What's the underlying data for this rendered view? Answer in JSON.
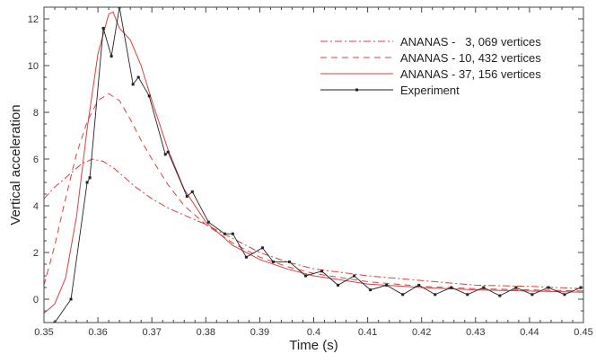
{
  "chart_data": {
    "type": "line",
    "xlabel": "Time (s)",
    "ylabel": "Vertical acceleration",
    "xlim": [
      0.35,
      0.45
    ],
    "ylim": [
      -1,
      12.5
    ],
    "xticks": [
      "0.35",
      "0.36",
      "0.37",
      "0.38",
      "0.39",
      "0.4",
      "0.41",
      "0.42",
      "0.43",
      "0.44",
      "0.45"
    ],
    "yticks": [
      "0",
      "2",
      "4",
      "6",
      "8",
      "10",
      "12"
    ],
    "legend_position": "top-right",
    "grid": false,
    "series": [
      {
        "name": "ANANAS -   3, 069 vertices",
        "style": "dashdot",
        "color": "#d84040",
        "x": [
          0.35,
          0.352,
          0.355,
          0.357,
          0.359,
          0.361,
          0.363,
          0.365,
          0.367,
          0.37,
          0.373,
          0.376,
          0.38,
          0.385,
          0.39,
          0.395,
          0.4,
          0.41,
          0.42,
          0.43,
          0.44,
          0.45
        ],
        "y": [
          4.3,
          4.8,
          5.4,
          5.8,
          6.0,
          5.9,
          5.6,
          5.2,
          4.8,
          4.3,
          3.9,
          3.6,
          3.2,
          2.6,
          2.0,
          1.6,
          1.3,
          1.0,
          0.8,
          0.6,
          0.55,
          0.45
        ]
      },
      {
        "name": "ANANAS - 10, 432 vertices",
        "style": "dashed",
        "color": "#d84040",
        "x": [
          0.35,
          0.352,
          0.354,
          0.356,
          0.358,
          0.36,
          0.362,
          0.364,
          0.366,
          0.368,
          0.37,
          0.373,
          0.376,
          0.38,
          0.385,
          0.39,
          0.395,
          0.4,
          0.41,
          0.42,
          0.43,
          0.44,
          0.45
        ],
        "y": [
          0.6,
          2.3,
          4.3,
          6.2,
          7.6,
          8.5,
          8.8,
          8.5,
          7.7,
          6.8,
          6.0,
          4.9,
          4.0,
          3.2,
          2.4,
          1.8,
          1.4,
          1.1,
          0.75,
          0.55,
          0.45,
          0.4,
          0.35
        ]
      },
      {
        "name": "ANANAS - 37, 156 vertices",
        "style": "solid",
        "color": "#d84040",
        "x": [
          0.35,
          0.352,
          0.354,
          0.356,
          0.358,
          0.36,
          0.362,
          0.3628,
          0.364,
          0.366,
          0.368,
          0.37,
          0.373,
          0.376,
          0.38,
          0.385,
          0.39,
          0.395,
          0.4,
          0.41,
          0.42,
          0.43,
          0.44,
          0.45
        ],
        "y": [
          -0.6,
          -0.2,
          0.9,
          3.5,
          7.3,
          10.5,
          12.2,
          12.3,
          11.6,
          11.1,
          10.0,
          8.5,
          6.4,
          4.7,
          3.3,
          2.3,
          1.7,
          1.3,
          1.0,
          0.65,
          0.5,
          0.4,
          0.35,
          0.3
        ]
      },
      {
        "name": "Experiment",
        "style": "solid-markers",
        "color": "#222222",
        "x": [
          0.352,
          0.355,
          0.358,
          0.3585,
          0.361,
          0.3625,
          0.364,
          0.3665,
          0.3675,
          0.3695,
          0.3725,
          0.373,
          0.3765,
          0.3775,
          0.3805,
          0.3835,
          0.385,
          0.3875,
          0.3905,
          0.3925,
          0.3955,
          0.3985,
          0.4015,
          0.4045,
          0.4075,
          0.4105,
          0.4135,
          0.4165,
          0.4195,
          0.4225,
          0.4255,
          0.4285,
          0.4315,
          0.4345,
          0.4375,
          0.4405,
          0.4435,
          0.4465,
          0.4495
        ],
        "y": [
          -1.0,
          0.0,
          5.0,
          5.2,
          11.6,
          10.4,
          12.5,
          9.2,
          9.5,
          8.7,
          6.2,
          6.3,
          4.4,
          4.6,
          3.3,
          2.8,
          2.8,
          1.8,
          2.2,
          1.6,
          1.6,
          1.0,
          1.2,
          0.6,
          1.0,
          0.4,
          0.6,
          0.2,
          0.6,
          0.2,
          0.5,
          0.2,
          0.5,
          0.15,
          0.5,
          0.2,
          0.5,
          0.2,
          0.5
        ]
      }
    ]
  }
}
